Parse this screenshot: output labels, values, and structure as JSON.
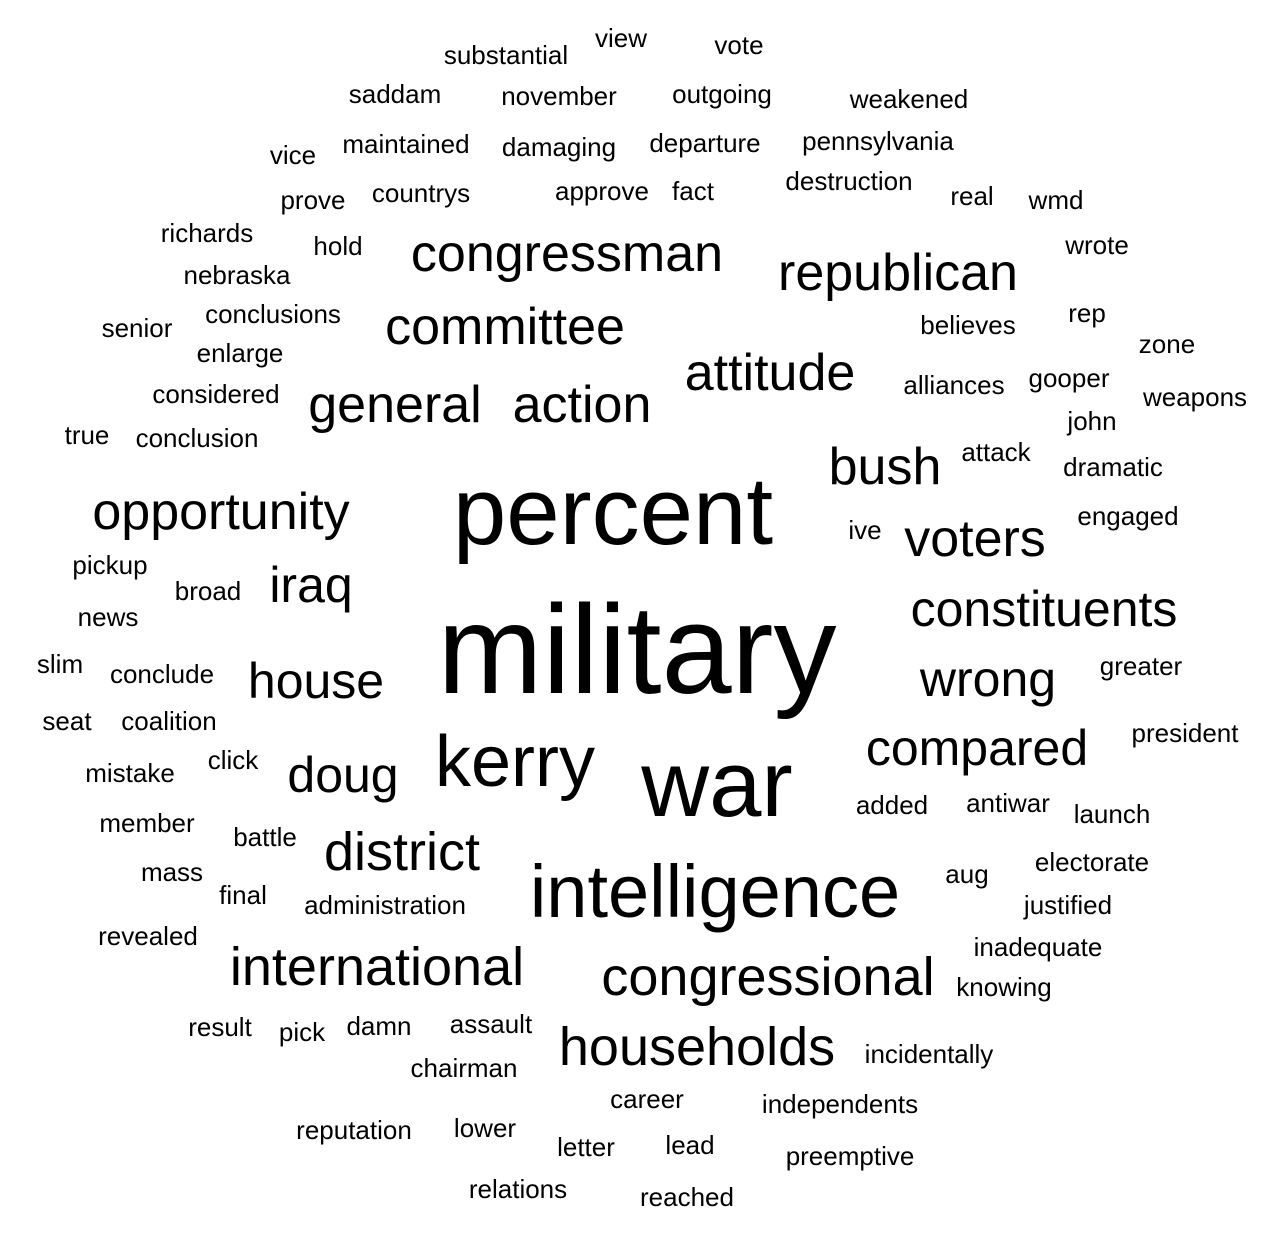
{
  "cloud": {
    "text_color": "#000000",
    "background": "#ffffff",
    "words": [
      {
        "text": "military",
        "weight": 100
      },
      {
        "text": "percent",
        "weight": 80
      },
      {
        "text": "war",
        "weight": 78
      },
      {
        "text": "intelligence",
        "weight": 66
      },
      {
        "text": "kerry",
        "weight": 62
      },
      {
        "text": "congressional",
        "weight": 48
      },
      {
        "text": "households",
        "weight": 48
      },
      {
        "text": "international",
        "weight": 48
      },
      {
        "text": "district",
        "weight": 48
      },
      {
        "text": "congressman",
        "weight": 46
      },
      {
        "text": "republican",
        "weight": 46
      },
      {
        "text": "committee",
        "weight": 46
      },
      {
        "text": "general",
        "weight": 46
      },
      {
        "text": "action",
        "weight": 46
      },
      {
        "text": "attitude",
        "weight": 46
      },
      {
        "text": "opportunity",
        "weight": 46
      },
      {
        "text": "bush",
        "weight": 46
      },
      {
        "text": "voters",
        "weight": 46
      },
      {
        "text": "iraq",
        "weight": 44
      },
      {
        "text": "constituents",
        "weight": 44
      },
      {
        "text": "house",
        "weight": 44
      },
      {
        "text": "wrong",
        "weight": 44
      },
      {
        "text": "doug",
        "weight": 44
      },
      {
        "text": "compared",
        "weight": 44
      },
      {
        "text": "substantial",
        "weight": 20
      },
      {
        "text": "view",
        "weight": 20
      },
      {
        "text": "vote",
        "weight": 20
      },
      {
        "text": "saddam",
        "weight": 20
      },
      {
        "text": "november",
        "weight": 20
      },
      {
        "text": "outgoing",
        "weight": 20
      },
      {
        "text": "weakened",
        "weight": 20
      },
      {
        "text": "vice",
        "weight": 20
      },
      {
        "text": "maintained",
        "weight": 20
      },
      {
        "text": "damaging",
        "weight": 20
      },
      {
        "text": "departure",
        "weight": 20
      },
      {
        "text": "pennsylvania",
        "weight": 20
      },
      {
        "text": "prove",
        "weight": 20
      },
      {
        "text": "countrys",
        "weight": 20
      },
      {
        "text": "approve",
        "weight": 20
      },
      {
        "text": "fact",
        "weight": 20
      },
      {
        "text": "destruction",
        "weight": 20
      },
      {
        "text": "real",
        "weight": 20
      },
      {
        "text": "wmd",
        "weight": 20
      },
      {
        "text": "richards",
        "weight": 20
      },
      {
        "text": "hold",
        "weight": 20
      },
      {
        "text": "wrote",
        "weight": 20
      },
      {
        "text": "nebraska",
        "weight": 20
      },
      {
        "text": "senior",
        "weight": 20
      },
      {
        "text": "conclusions",
        "weight": 20
      },
      {
        "text": "believes",
        "weight": 20
      },
      {
        "text": "rep",
        "weight": 20
      },
      {
        "text": "zone",
        "weight": 20
      },
      {
        "text": "enlarge",
        "weight": 20
      },
      {
        "text": "considered",
        "weight": 20
      },
      {
        "text": "alliances",
        "weight": 20
      },
      {
        "text": "gooper",
        "weight": 20
      },
      {
        "text": "weapons",
        "weight": 20
      },
      {
        "text": "true",
        "weight": 20
      },
      {
        "text": "conclusion",
        "weight": 20
      },
      {
        "text": "john",
        "weight": 20
      },
      {
        "text": "attack",
        "weight": 20
      },
      {
        "text": "dramatic",
        "weight": 20
      },
      {
        "text": "engaged",
        "weight": 20
      },
      {
        "text": "ive",
        "weight": 20
      },
      {
        "text": "pickup",
        "weight": 20
      },
      {
        "text": "broad",
        "weight": 20
      },
      {
        "text": "news",
        "weight": 20
      },
      {
        "text": "slim",
        "weight": 20
      },
      {
        "text": "conclude",
        "weight": 20
      },
      {
        "text": "greater",
        "weight": 20
      },
      {
        "text": "seat",
        "weight": 20
      },
      {
        "text": "coalition",
        "weight": 20
      },
      {
        "text": "president",
        "weight": 20
      },
      {
        "text": "mistake",
        "weight": 20
      },
      {
        "text": "click",
        "weight": 20
      },
      {
        "text": "added",
        "weight": 20
      },
      {
        "text": "antiwar",
        "weight": 20
      },
      {
        "text": "launch",
        "weight": 20
      },
      {
        "text": "member",
        "weight": 20
      },
      {
        "text": "battle",
        "weight": 20
      },
      {
        "text": "electorate",
        "weight": 20
      },
      {
        "text": "mass",
        "weight": 20
      },
      {
        "text": "aug",
        "weight": 20
      },
      {
        "text": "final",
        "weight": 20
      },
      {
        "text": "administration",
        "weight": 20
      },
      {
        "text": "justified",
        "weight": 20
      },
      {
        "text": "revealed",
        "weight": 20
      },
      {
        "text": "inadequate",
        "weight": 20
      },
      {
        "text": "knowing",
        "weight": 20
      },
      {
        "text": "result",
        "weight": 20
      },
      {
        "text": "pick",
        "weight": 20
      },
      {
        "text": "damn",
        "weight": 20
      },
      {
        "text": "assault",
        "weight": 20
      },
      {
        "text": "incidentally",
        "weight": 20
      },
      {
        "text": "chairman",
        "weight": 20
      },
      {
        "text": "career",
        "weight": 20
      },
      {
        "text": "independents",
        "weight": 20
      },
      {
        "text": "reputation",
        "weight": 20
      },
      {
        "text": "lower",
        "weight": 20
      },
      {
        "text": "letter",
        "weight": 20
      },
      {
        "text": "lead",
        "weight": 20
      },
      {
        "text": "preemptive",
        "weight": 20
      },
      {
        "text": "relations",
        "weight": 20
      },
      {
        "text": "reached",
        "weight": 20
      }
    ]
  }
}
